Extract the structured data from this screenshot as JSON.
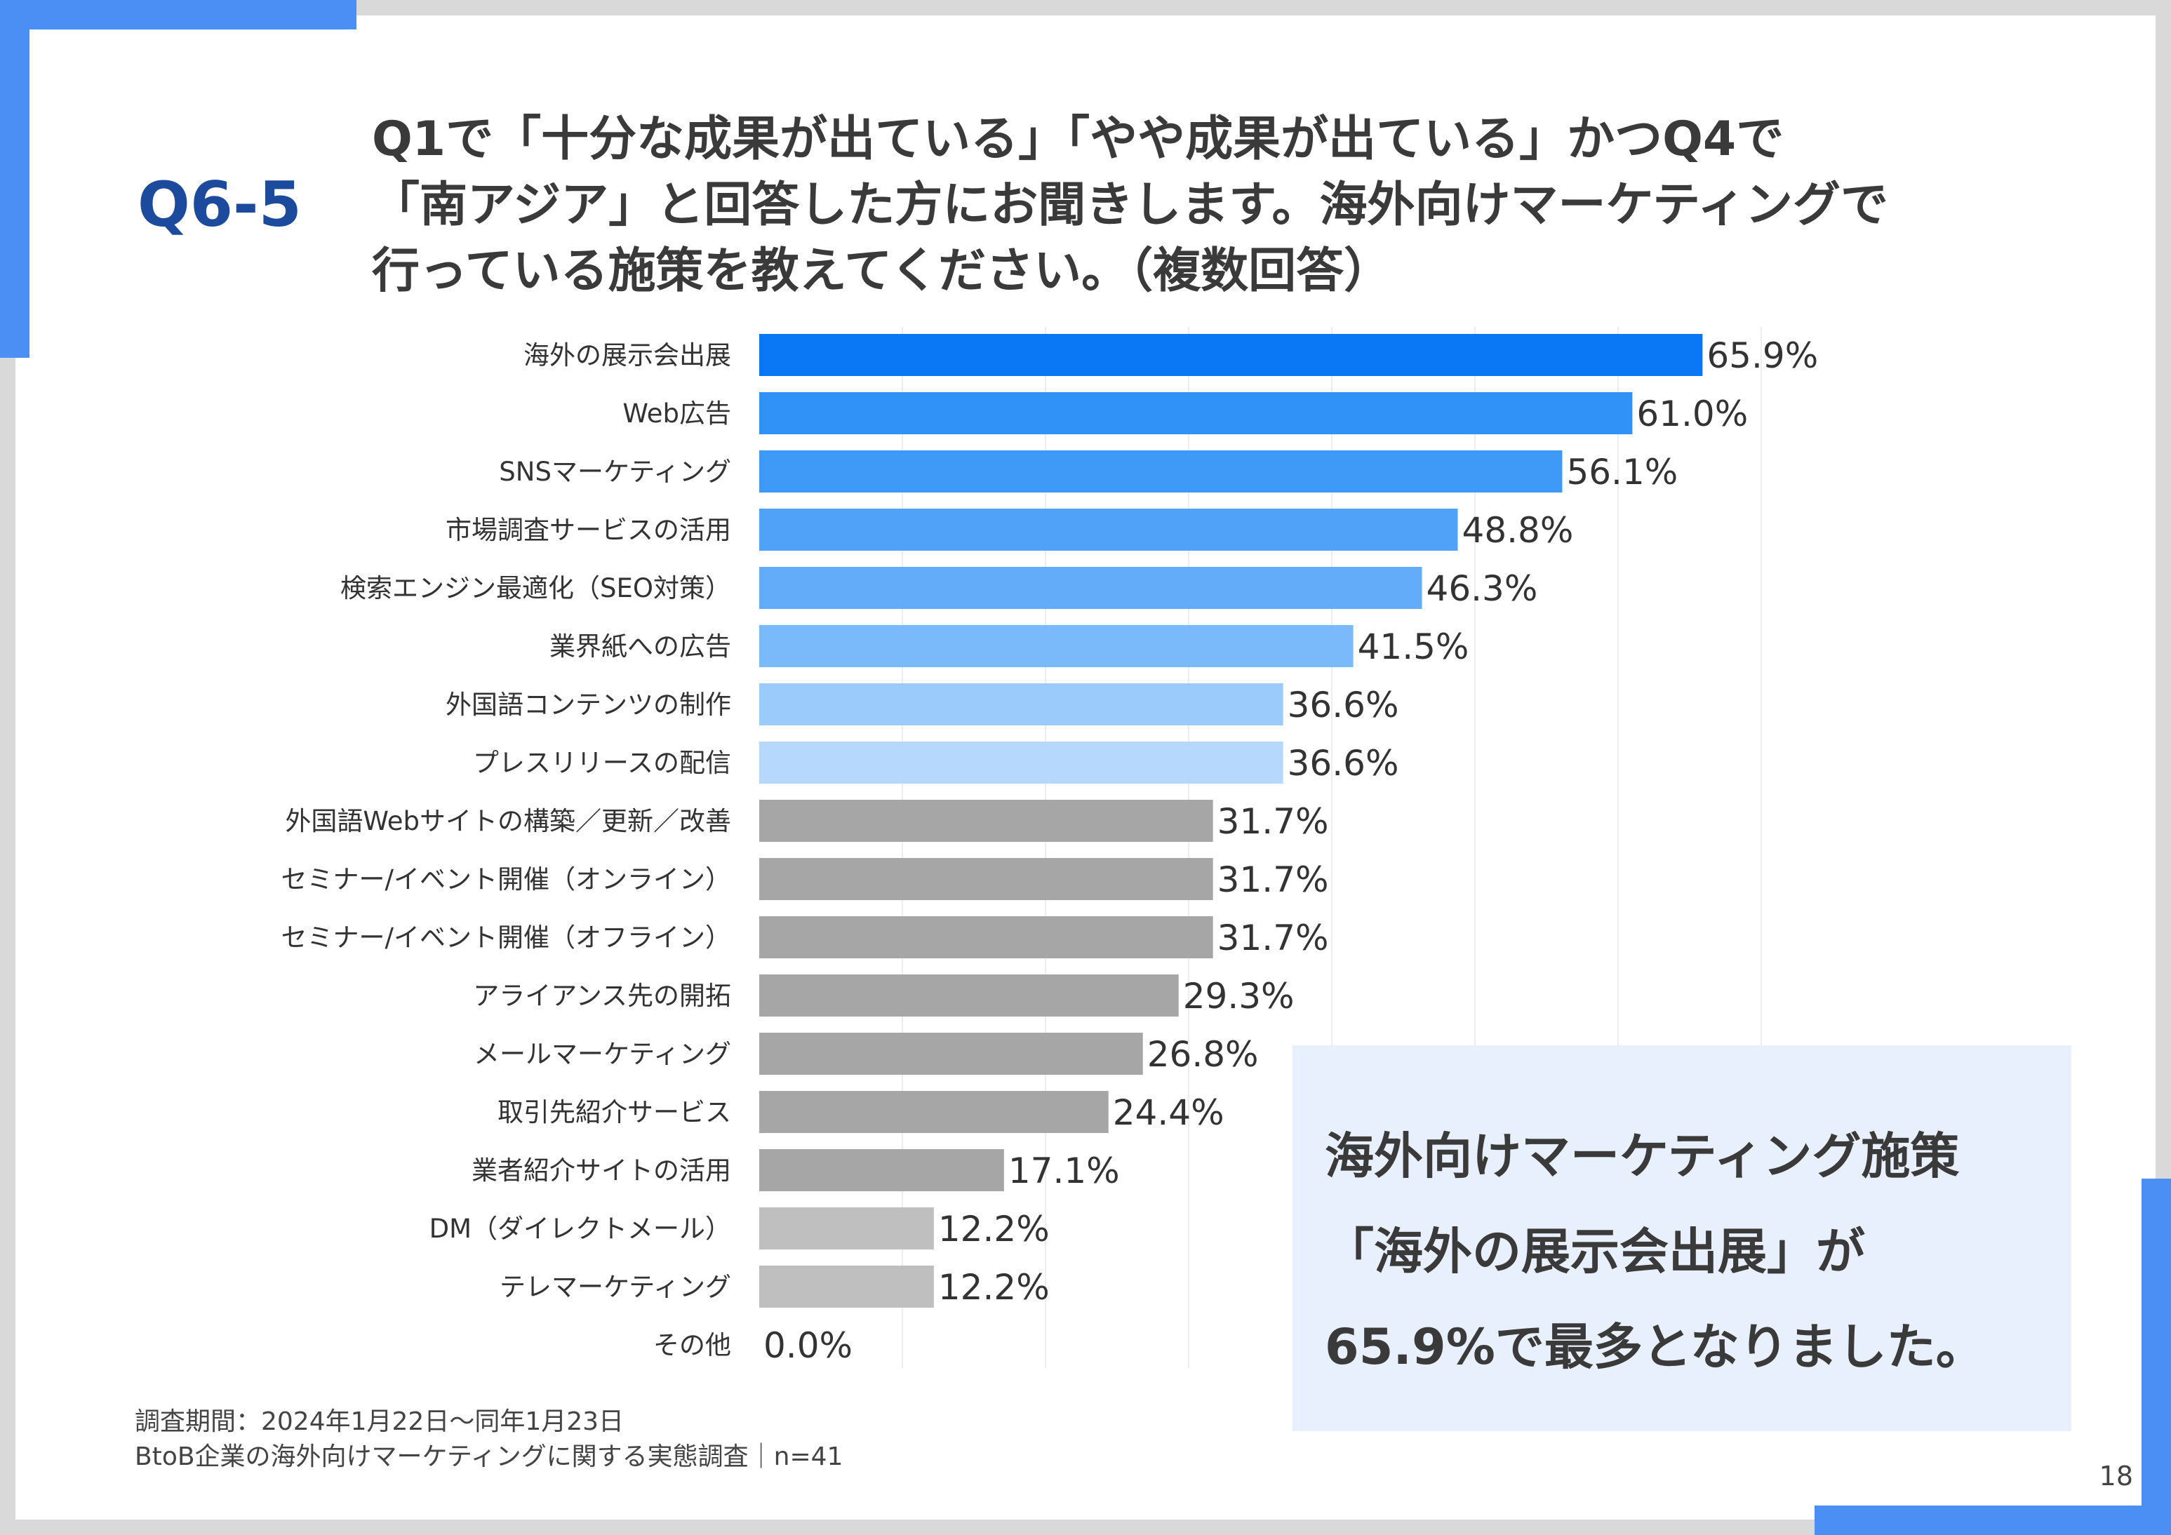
{
  "question_number": "Q6-5",
  "question_lines": [
    "Q1で「十分な成果が出ている」「やや成果が出ている」かつQ4で",
    "「南アジア」と回答した方にお聞きします。海外向けマーケティングで",
    "行っている施策を教えてください。（複数回答）"
  ],
  "callout_lines": [
    "海外向けマーケティング施策",
    "「海外の展示会出展」が",
    "65.9%で最多となりました。"
  ],
  "footnote_lines": [
    "調査期間：2024年1月22日～同年1月23日",
    "BtoB企業の海外向けマーケティングに関する実態調査｜n=41"
  ],
  "page_number": "18",
  "colors": {
    "accent": "#4b8ff5",
    "question_number": "#1c4a9c",
    "callout_bg": "#e8f0fd"
  },
  "chart_data": {
    "type": "bar",
    "orientation": "horizontal",
    "unit": "%",
    "xlim": [
      0,
      70
    ],
    "grid": true,
    "categories": [
      "海外の展示会出展",
      "Web広告",
      "SNSマーケティング",
      "市場調査サービスの活用",
      "検索エンジン最適化（SEO対策）",
      "業界紙への広告",
      "外国語コンテンツの制作",
      "プレスリリースの配信",
      "外国語Webサイトの構築／更新／改善",
      "セミナー/イベント開催（オンライン）",
      "セミナー/イベント開催（オフライン）",
      "アライアンス先の開拓",
      "メールマーケティング",
      "取引先紹介サービス",
      "業者紹介サイトの活用",
      "DM（ダイレクトメール）",
      "テレマーケティング",
      "その他"
    ],
    "values": [
      65.9,
      61.0,
      56.1,
      48.8,
      46.3,
      41.5,
      36.6,
      36.6,
      31.7,
      31.7,
      31.7,
      29.3,
      26.8,
      24.4,
      17.1,
      12.2,
      12.2,
      0.0
    ],
    "value_labels": [
      "65.9%",
      "61.0%",
      "56.1%",
      "48.8%",
      "46.3%",
      "41.5%",
      "36.6%",
      "36.6%",
      "31.7%",
      "31.7%",
      "31.7%",
      "29.3%",
      "26.8%",
      "24.4%",
      "17.1%",
      "12.2%",
      "12.2%",
      "0.0%"
    ],
    "bar_colors": [
      "#0a78f5",
      "#3091f7",
      "#3f99f7",
      "#4fa2f8",
      "#62acf9",
      "#7ab9fa",
      "#9bcbfb",
      "#b6d8fc",
      "#a6a6a6",
      "#a6a6a6",
      "#a6a6a6",
      "#a6a6a6",
      "#a6a6a6",
      "#a6a6a6",
      "#a6a6a6",
      "#bfbfbf",
      "#bfbfbf",
      "#bfbfbf"
    ]
  }
}
